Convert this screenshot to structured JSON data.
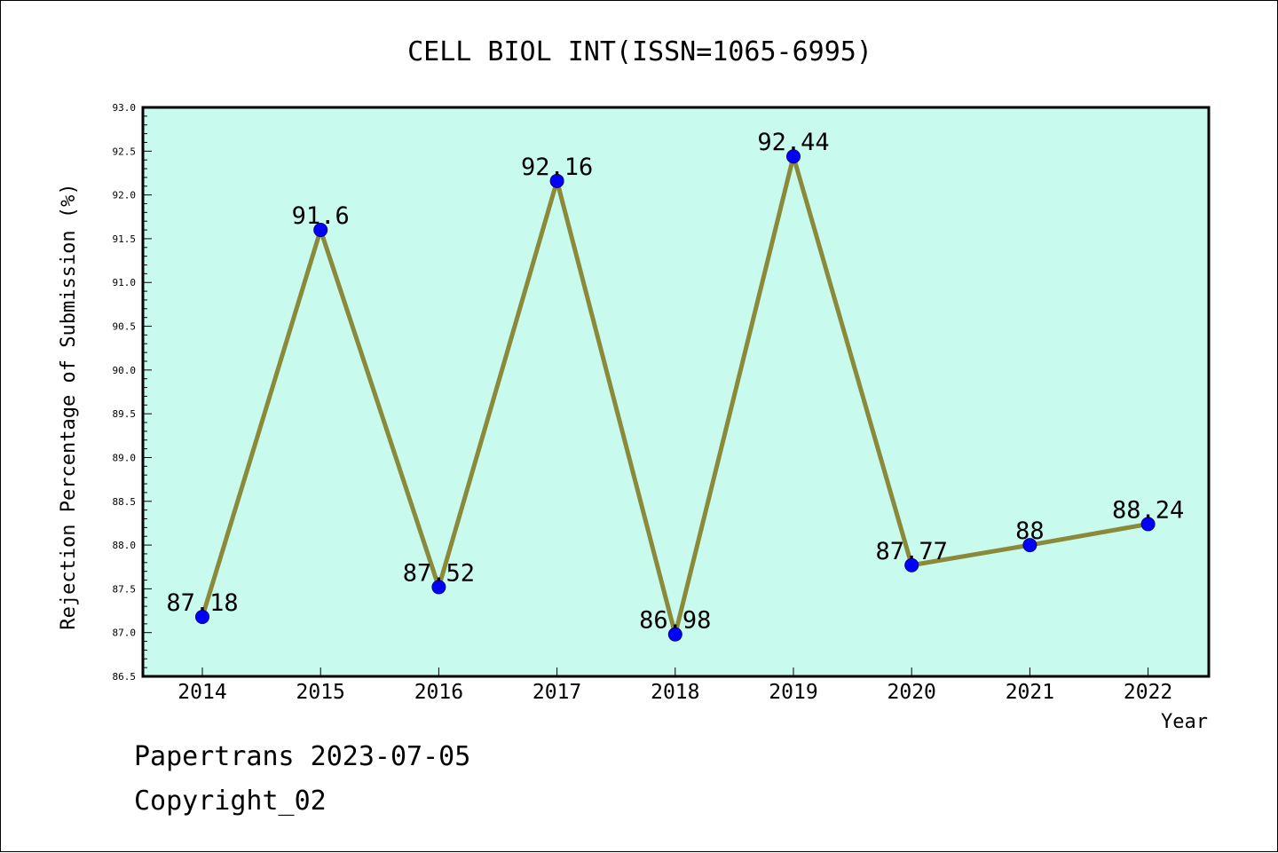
{
  "chart_data": {
    "type": "line",
    "title": "CELL BIOL INT(ISSN=1065-6995)",
    "xlabel": "Year",
    "ylabel": "Rejection Percentage of Submission (%)",
    "categories": [
      "2014",
      "2015",
      "2016",
      "2017",
      "2018",
      "2019",
      "2020",
      "2021",
      "2022"
    ],
    "values": [
      87.18,
      91.6,
      87.52,
      92.16,
      86.98,
      92.44,
      87.77,
      88,
      88.24
    ],
    "data_labels": [
      "87.18",
      "91.6",
      "87.52",
      "92.16",
      "86.98",
      "92.44",
      "87.77",
      "88",
      "88.24"
    ],
    "ylim": [
      86.5,
      93.0
    ],
    "yticks": [
      "86.5",
      "87.0",
      "87.5",
      "88.0",
      "88.5",
      "89.0",
      "89.5",
      "90.0",
      "90.5",
      "91.0",
      "91.5",
      "92.0",
      "92.5",
      "93.0"
    ],
    "grid": false,
    "colors": {
      "plot_background": "#c8fbee",
      "line": "#8a8a3a",
      "marker": "#0000ff"
    }
  },
  "footer": {
    "line1": "Papertrans 2023-07-05",
    "line2": "Copyright_02"
  }
}
